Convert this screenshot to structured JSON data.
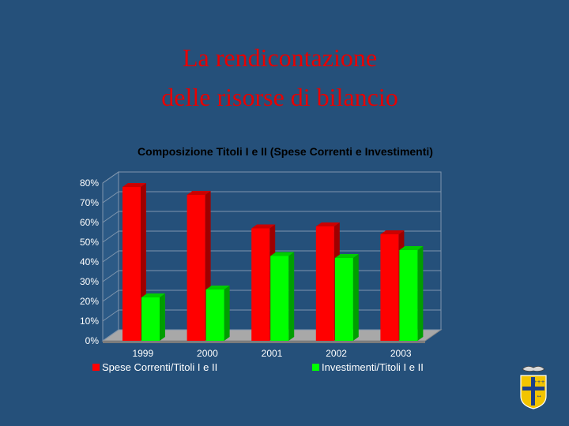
{
  "slide": {
    "title_line1": "La rendicontazione",
    "title_line2": "delle risorse di bilancio"
  },
  "colors": {
    "background": "#25507a",
    "title": "#e80000",
    "series_spese": "#ff0000",
    "series_investimenti": "#00ff00"
  },
  "chart_data": {
    "type": "bar",
    "title": "Composizione Titoli I e II (Spese Correnti e Investimenti)",
    "categories": [
      "1999",
      "2000",
      "2001",
      "2002",
      "2003"
    ],
    "series": [
      {
        "name": "Spese Correnti/Titoli I e II",
        "values": [
          78,
          74,
          57,
          58,
          54
        ]
      },
      {
        "name": "Investimenti/Titoli I e II",
        "values": [
          22,
          26,
          43,
          42,
          46
        ]
      }
    ],
    "yticks": [
      "0%",
      "10%",
      "20%",
      "30%",
      "40%",
      "50%",
      "60%",
      "70%",
      "80%"
    ],
    "ylim": [
      0,
      80
    ],
    "grid": true,
    "style": "3d",
    "legend_position": "bottom"
  },
  "emblem": {
    "icon": "coat-of-arms-icon"
  }
}
